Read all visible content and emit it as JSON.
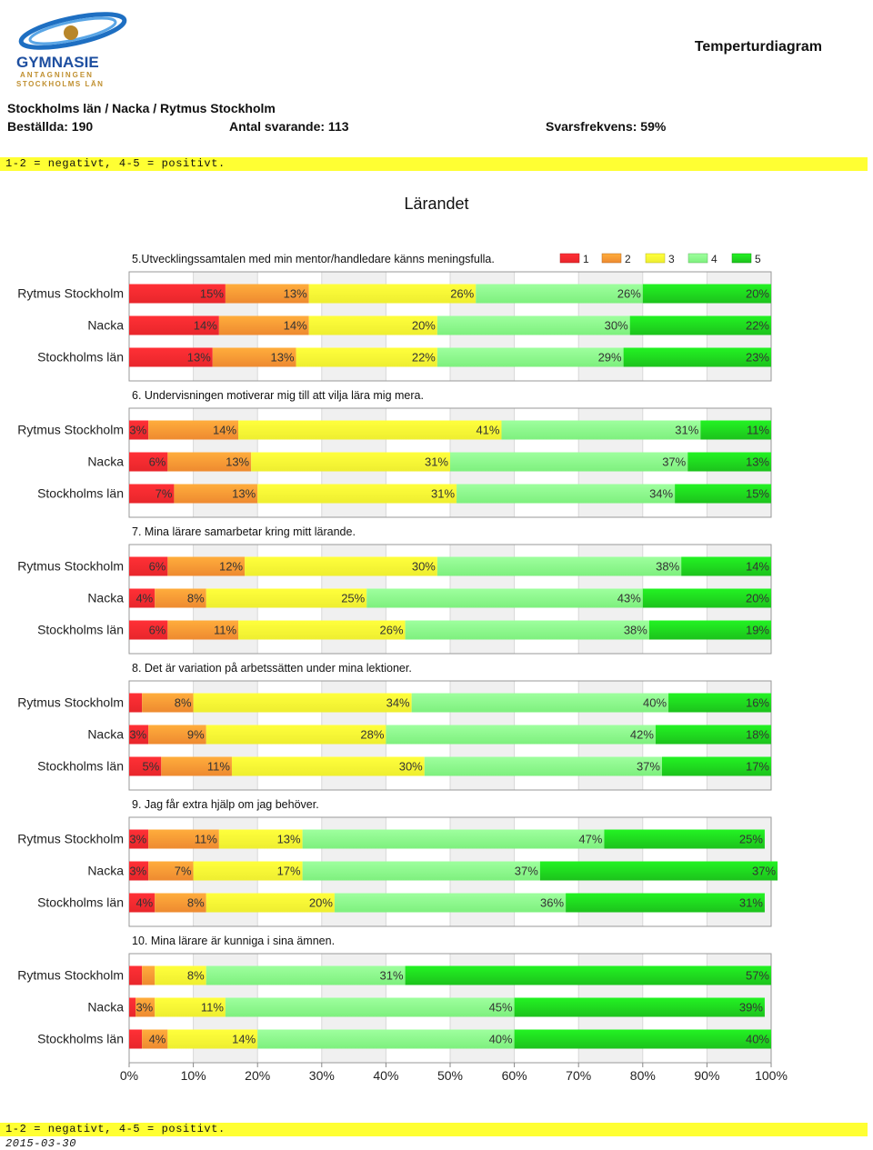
{
  "header": {
    "logo_text_1": "GYMNASIE",
    "logo_text_2": "ANTAGNINGEN",
    "logo_text_3": "STOCKHOLMS LÄN",
    "doc_title": "Temperturdiagram",
    "breadcrumb": "Stockholms län / Nacka / Rytmus Stockholm",
    "ordered": "Beställda: 190",
    "responses": "Antal svarande: 113",
    "rate": "Svarsfrekvens: 59%",
    "legend_note": "1-2 = negativt, 4-5 = positivt.",
    "section": "Lärandet"
  },
  "footer": {
    "legend_note": "1-2 = negativt, 4-5 = positivt.",
    "date": "2015-03-30"
  },
  "colors": {
    "c1": "#e8262b",
    "c2": "#ee8a30",
    "c3": "#eeee30",
    "c4": "#7ef07e",
    "c5": "#1cc21c",
    "band": "#ffff33"
  },
  "chart_data": {
    "type": "bar",
    "stacked": true,
    "orientation": "horizontal",
    "legend": [
      "1",
      "2",
      "3",
      "4",
      "5"
    ],
    "legend_placement": "top-right",
    "xlim": [
      0,
      100
    ],
    "xticks": [
      "0%",
      "10%",
      "20%",
      "30%",
      "40%",
      "50%",
      "60%",
      "70%",
      "80%",
      "90%",
      "100%"
    ],
    "categories": [
      "Rytmus Stockholm",
      "Nacka",
      "Stockholms län"
    ],
    "questions": [
      {
        "title": "5.Utvecklingssamtalen med min mentor/handledare känns meningsfulla.",
        "rows": [
          {
            "name": "Rytmus Stockholm",
            "values": [
              15,
              13,
              26,
              26,
              20
            ]
          },
          {
            "name": "Nacka",
            "values": [
              14,
              14,
              20,
              30,
              22
            ]
          },
          {
            "name": "Stockholms län",
            "values": [
              13,
              13,
              22,
              29,
              23
            ]
          }
        ]
      },
      {
        "title": "6. Undervisningen motiverar mig till att vilja lära mig mera.",
        "rows": [
          {
            "name": "Rytmus Stockholm",
            "values": [
              3,
              14,
              41,
              31,
              11
            ]
          },
          {
            "name": "Nacka",
            "values": [
              6,
              13,
              31,
              37,
              13
            ]
          },
          {
            "name": "Stockholms län",
            "values": [
              7,
              13,
              31,
              34,
              15
            ]
          }
        ]
      },
      {
        "title": "7. Mina lärare samarbetar kring mitt lärande.",
        "rows": [
          {
            "name": "Rytmus Stockholm",
            "values": [
              6,
              12,
              30,
              38,
              14
            ]
          },
          {
            "name": "Nacka",
            "values": [
              4,
              8,
              25,
              43,
              20
            ]
          },
          {
            "name": "Stockholms län",
            "values": [
              6,
              11,
              26,
              38,
              19
            ]
          }
        ]
      },
      {
        "title": "8. Det är variation på arbetssätten under mina lektioner.",
        "rows": [
          {
            "name": "Rytmus Stockholm",
            "values": [
              2,
              8,
              34,
              40,
              16
            ]
          },
          {
            "name": "Nacka",
            "values": [
              3,
              9,
              28,
              42,
              18
            ]
          },
          {
            "name": "Stockholms län",
            "values": [
              5,
              11,
              30,
              37,
              17
            ]
          }
        ]
      },
      {
        "title": "9. Jag får extra hjälp om jag behöver.",
        "rows": [
          {
            "name": "Rytmus Stockholm",
            "values": [
              3,
              11,
              13,
              47,
              25
            ]
          },
          {
            "name": "Nacka",
            "values": [
              3,
              7,
              17,
              37,
              37
            ]
          },
          {
            "name": "Stockholms län",
            "values": [
              4,
              8,
              20,
              36,
              31
            ]
          }
        ]
      },
      {
        "title": "10. Mina lärare är kunniga i sina ämnen.",
        "rows": [
          {
            "name": "Rytmus Stockholm",
            "values": [
              2,
              2,
              8,
              31,
              57
            ]
          },
          {
            "name": "Nacka",
            "values": [
              1,
              3,
              11,
              45,
              39
            ]
          },
          {
            "name": "Stockholms län",
            "values": [
              2,
              4,
              14,
              40,
              40
            ]
          }
        ]
      }
    ]
  }
}
